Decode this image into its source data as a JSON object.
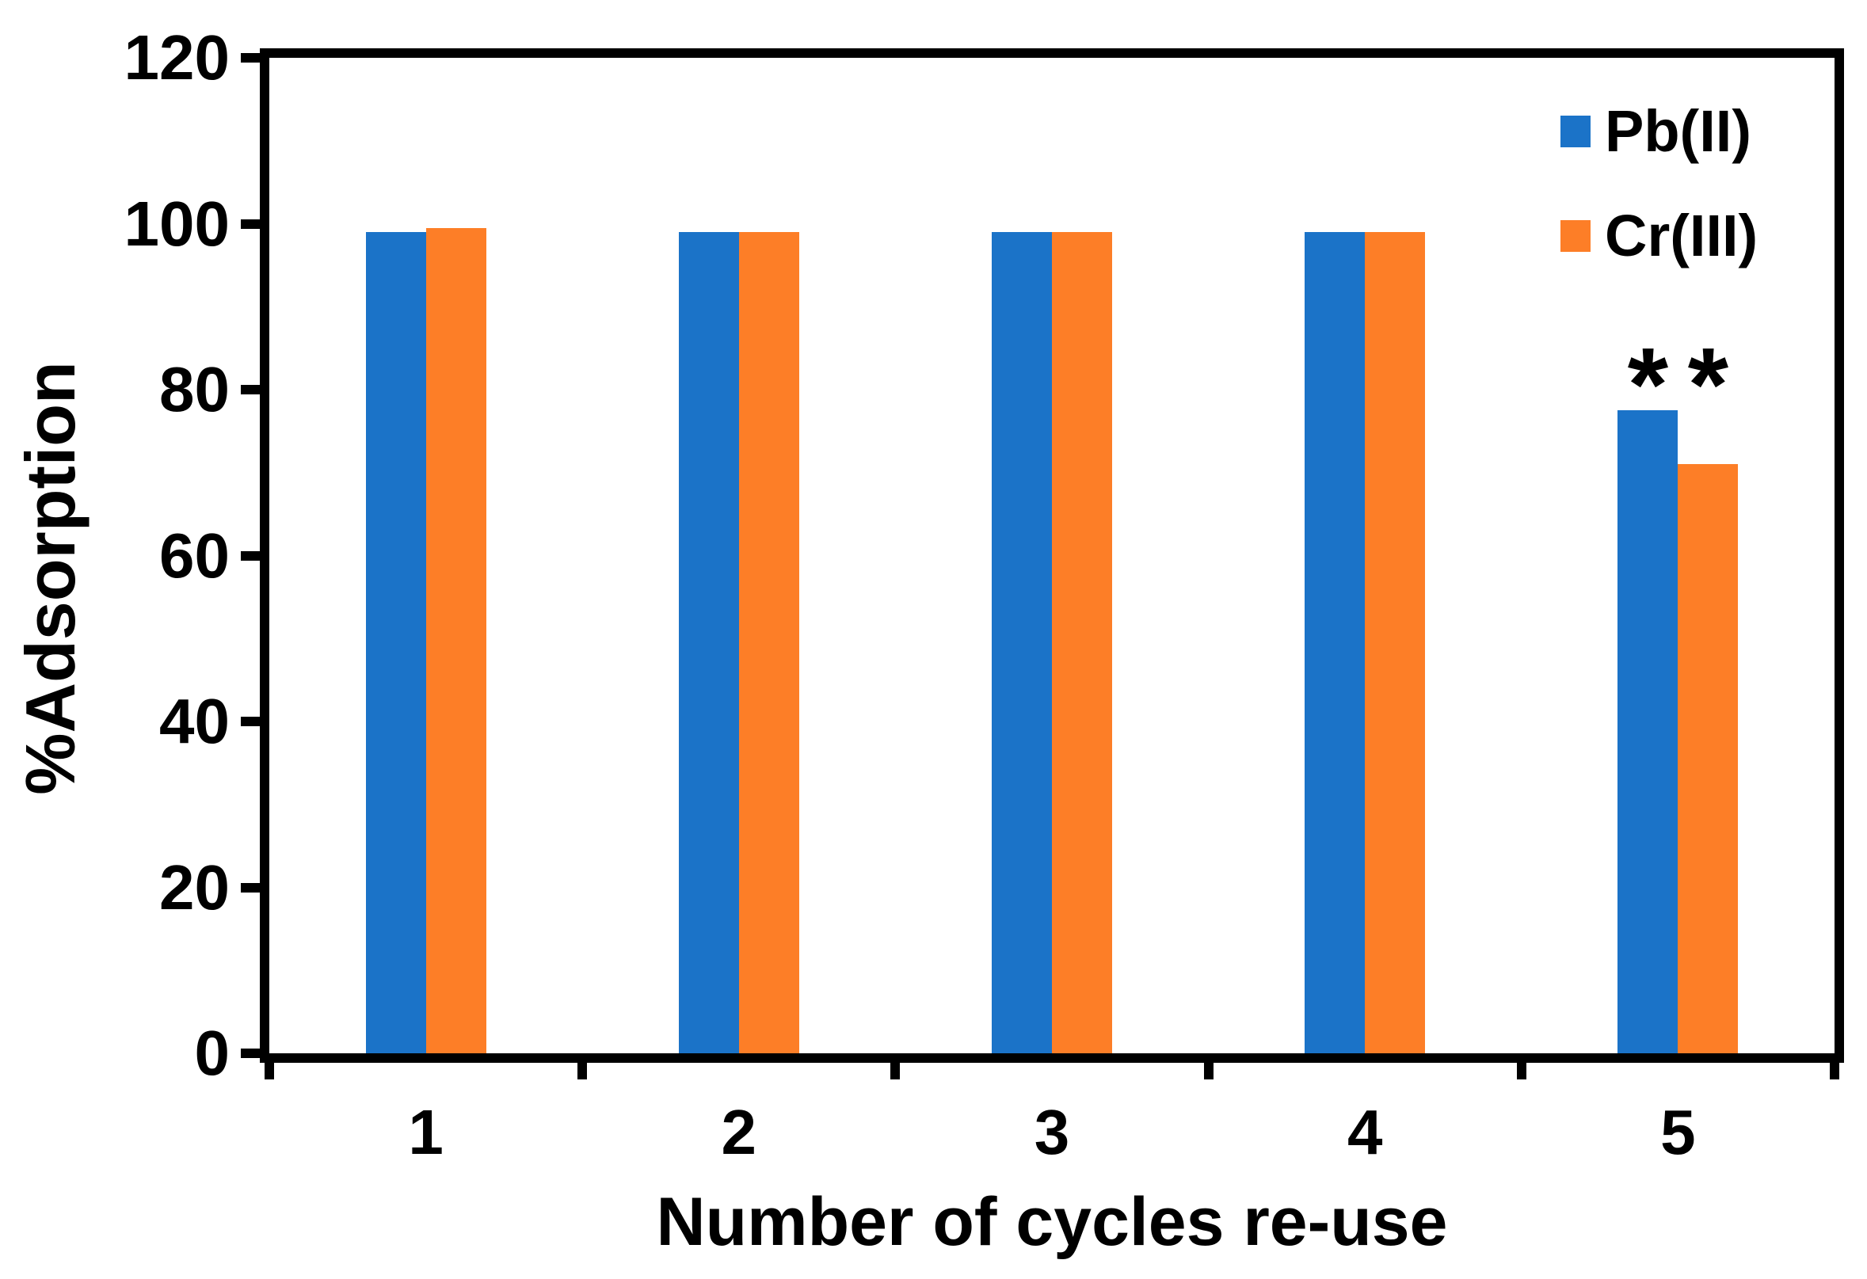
{
  "chart_data": {
    "type": "bar",
    "title": "",
    "xlabel": "Number of cycles re-use",
    "ylabel": "%Adsorption",
    "categories": [
      "1",
      "2",
      "3",
      "4",
      "5"
    ],
    "series": [
      {
        "name": "Pb(II)",
        "color": "#1B73C8",
        "values": [
          99,
          99,
          99,
          99,
          77.5
        ]
      },
      {
        "name": "Cr(III)",
        "color": "#FD7E27",
        "values": [
          99.5,
          99,
          99,
          99,
          71
        ]
      }
    ],
    "ylim": [
      0,
      120
    ],
    "yticks": [
      0,
      20,
      40,
      60,
      80,
      100,
      120
    ],
    "grid": false,
    "legend_position": "top-right-inside",
    "axis_color": "#000000",
    "annotations": [
      {
        "text": "*",
        "series": "Pb(II)",
        "category": "5"
      },
      {
        "text": "*",
        "series": "Cr(III)",
        "category": "5"
      }
    ]
  }
}
